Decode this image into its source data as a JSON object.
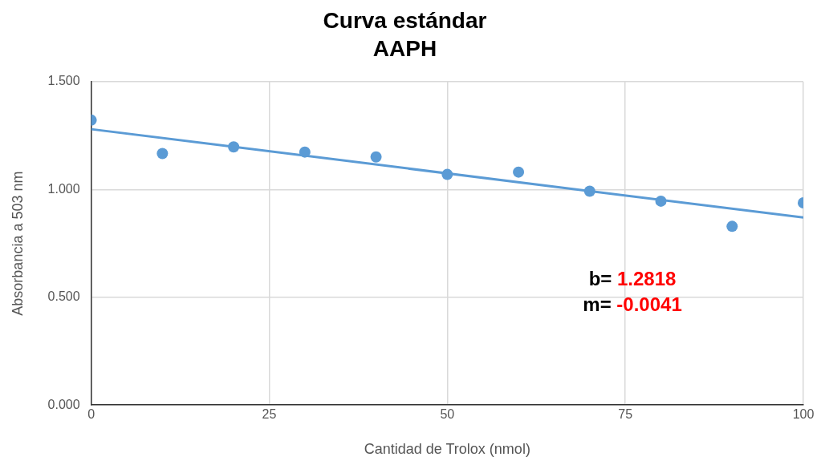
{
  "chart_data": {
    "type": "scatter",
    "title": "Curva estándar",
    "subtitle": "AAPH",
    "xlabel": "Cantidad de Trolox (nmol)",
    "ylabel": "Absorbancia a 503 nm",
    "x": [
      0,
      10,
      20,
      30,
      40,
      50,
      60,
      70,
      80,
      90,
      100
    ],
    "series": [
      {
        "color": "#5b9bd5",
        "values": [
          1.322,
          1.167,
          1.198,
          1.174,
          1.151,
          1.07,
          1.081,
          0.992,
          0.946,
          0.829,
          0.938
        ]
      },
      {
        "type": "line",
        "color": "#5b9bd5",
        "x": [
          0,
          100
        ],
        "values": [
          1.28,
          0.87
        ],
        "marker": "none"
      }
    ],
    "xlim": [
      0,
      100
    ],
    "xticks": [
      0,
      25,
      50,
      75,
      100
    ],
    "ylim": [
      0,
      1.5
    ],
    "yticks": [
      {
        "value": 0,
        "label": "0.000"
      },
      {
        "value": 0.5,
        "label": "0.500"
      },
      {
        "value": 1,
        "label": "1.000"
      },
      {
        "value": 1.5,
        "label": "1.500"
      }
    ],
    "grid": true,
    "legend": false,
    "marker": "circle",
    "annotations": [
      "b= 1.2818",
      "m= -0.0041"
    ]
  }
}
